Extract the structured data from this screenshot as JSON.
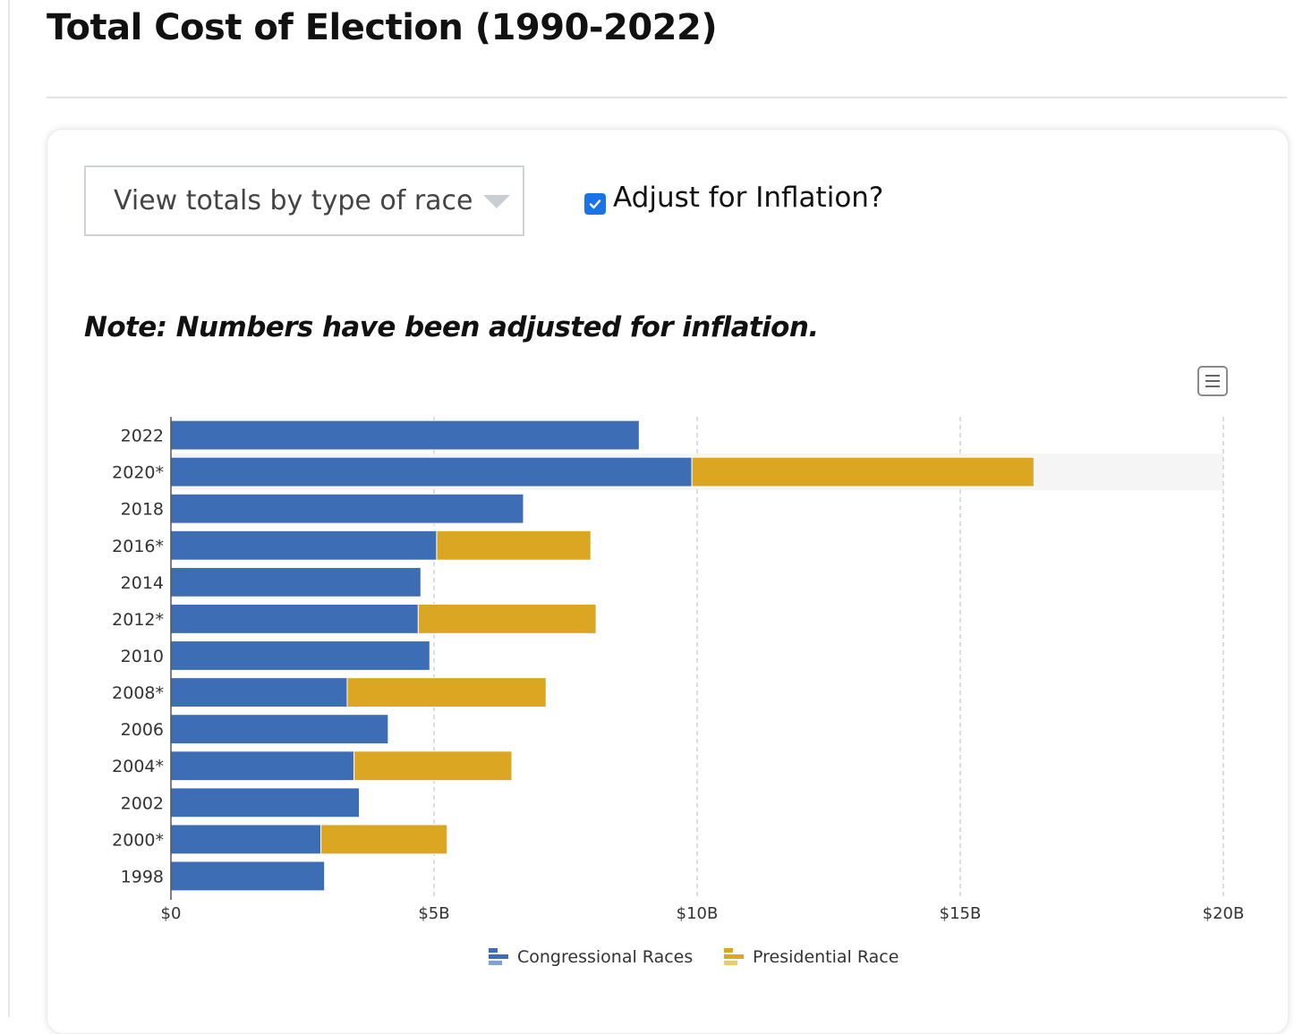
{
  "page": {
    "title": "Total Cost of Election (1990-2022)"
  },
  "controls": {
    "race_select_value": "View totals by type of race",
    "inflation_label": "Adjust for Inflation?",
    "inflation_checked": true
  },
  "note": "Note: Numbers have been adjusted for inflation.",
  "colors": {
    "congressional": "#3d6eb5",
    "presidential": "#dba622",
    "highlight_row": "#f5f5f5",
    "grid": "#c8c8c8"
  },
  "icons": {
    "menu": "hamburger-menu-icon",
    "checkbox": "checkmark-icon",
    "dropdown": "chevron-down-icon"
  },
  "chart_data": {
    "type": "bar",
    "orientation": "horizontal",
    "stacked": true,
    "categories": [
      "2022",
      "2020*",
      "2018",
      "2016*",
      "2014",
      "2012*",
      "2010",
      "2008*",
      "2006",
      "2004*",
      "2002",
      "2000*",
      "1998"
    ],
    "series": [
      {
        "name": "Congressional Races",
        "values": [
          8.9,
          9.9,
          6.7,
          5.05,
          4.75,
          4.7,
          4.92,
          3.35,
          4.13,
          3.48,
          3.58,
          2.85,
          2.92
        ]
      },
      {
        "name": "Presidential Race",
        "values": [
          0,
          6.5,
          0,
          2.93,
          0,
          3.38,
          0,
          3.78,
          0,
          3.0,
          0,
          2.4,
          0
        ]
      }
    ],
    "xaxis": {
      "range": [
        0,
        20
      ],
      "ticks": [
        0,
        5,
        10,
        15,
        20
      ],
      "tick_labels": [
        "$0",
        "$5B",
        "$10B",
        "$15B",
        "$20B"
      ],
      "unit": "billions USD"
    },
    "highlighted_category": "2020*",
    "grid": "vertical-dashed",
    "legend_position": "bottom-center"
  }
}
